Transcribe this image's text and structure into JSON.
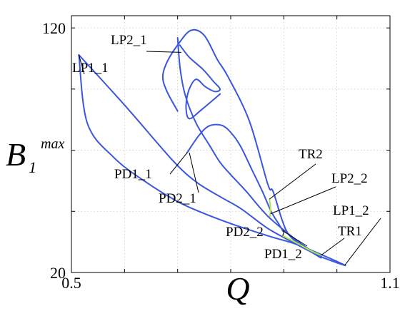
{
  "chart_data": {
    "type": "line",
    "xlabel": "Q",
    "ylabel": {
      "base": "B",
      "sub": "1",
      "sup": "max"
    },
    "xlim": [
      0.5,
      1.1
    ],
    "ylim": [
      20,
      125
    ],
    "x_ticks": [
      0.5,
      0.6,
      0.7,
      0.8,
      0.9,
      1.0,
      1.1
    ],
    "y_ticks": [
      20,
      45,
      70,
      95,
      120
    ],
    "x_tick_labels": [
      "0.5",
      "",
      "",
      "",
      "",
      "",
      "1.1"
    ],
    "y_tick_labels": [
      "20",
      "",
      "",
      "",
      "120"
    ],
    "grid": true,
    "series": [
      {
        "color": "#3a56e0",
        "x": [
          0.514,
          0.602,
          0.69,
          0.735,
          0.78,
          0.82,
          0.87,
          0.92,
          0.955,
          0.975,
          1.015,
          0.93,
          0.87,
          0.8,
          0.74,
          0.7,
          0.64,
          0.58,
          0.53,
          0.514
        ],
        "y": [
          109,
          88,
          66,
          57,
          51,
          46,
          38,
          32,
          28,
          26,
          23,
          31,
          35,
          40,
          45,
          49,
          57,
          67,
          81,
          109
        ]
      },
      {
        "color": "#3a56e0",
        "x": [
          0.7,
          0.68,
          0.672,
          0.68,
          0.7,
          0.725,
          0.75,
          0.775,
          0.795,
          0.835,
          0.87,
          0.88,
          0.905,
          0.935,
          0.97,
          0.925,
          0.87,
          0.83,
          0.8,
          0.78,
          0.76,
          0.735,
          0.715,
          0.705,
          0.7
        ],
        "y": [
          86,
          94,
          100,
          106,
          113,
          119,
          117,
          107,
          100,
          82,
          56,
          53,
          37,
          31,
          26,
          33,
          43,
          53,
          60,
          65,
          72,
          81,
          92,
          103,
          116
        ]
      },
      {
        "color": "#3a56e0",
        "x": [
          0.704,
          0.722,
          0.748,
          0.768,
          0.78,
          0.77,
          0.752,
          0.735,
          0.722,
          0.716,
          0.718,
          0.725,
          0.742,
          0.764,
          0.78
        ],
        "y": [
          113,
          108,
          103,
          98,
          95,
          94,
          96,
          99,
          95,
          89,
          84,
          83,
          86,
          90,
          93
        ]
      },
      {
        "color": "#3a56e0",
        "x": [
          0.718,
          0.74,
          0.76,
          0.785,
          0.805,
          0.82,
          0.84,
          0.86,
          0.876,
          0.89,
          0.898
        ],
        "y": [
          69,
          76,
          80,
          80,
          76,
          71,
          62,
          53,
          45,
          40,
          37
        ]
      },
      {
        "color": "#aee64a",
        "x": [
          0.873,
          0.875,
          0.874
        ],
        "y": [
          50,
          46,
          43
        ]
      },
      {
        "color": "#aee64a",
        "x": [
          0.898,
          0.925,
          0.95,
          0.97
        ],
        "y": [
          35,
          32,
          29,
          27
        ]
      }
    ],
    "annotations": [
      {
        "text": "LP2_1",
        "x": 0.707,
        "y": 110
      },
      {
        "text": "LP1_1",
        "x": 0.514,
        "y": 109
      },
      {
        "text": "TR2",
        "x": 0.873,
        "y": 50
      },
      {
        "text": "PD1_1",
        "x": 0.718,
        "y": 69
      },
      {
        "text": "PD2_1",
        "x": 0.722,
        "y": 69
      },
      {
        "text": "LP2_2",
        "x": 0.875,
        "y": 44
      },
      {
        "text": "LP1_2",
        "x": 1.015,
        "y": 23
      },
      {
        "text": "TR1",
        "x": 0.97,
        "y": 27
      },
      {
        "text": "PD2_2",
        "x": 0.898,
        "y": 35
      },
      {
        "text": "PD1_2",
        "x": 0.898,
        "y": 37
      }
    ]
  }
}
